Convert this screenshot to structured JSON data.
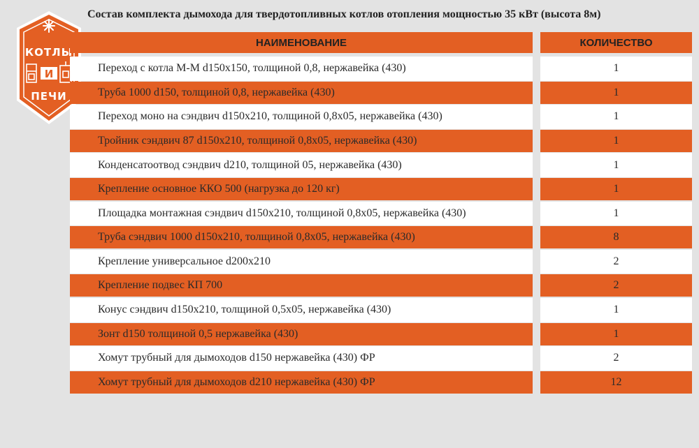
{
  "title": "Состав комплекта дымохода для твердотопливных котлов отопления мощностью 35 кВт (высота 8м)",
  "logo": {
    "line1": "КОТЛЫ",
    "line2": "И",
    "line3": "ПЕЧИ",
    "brand_color": "#e35f23"
  },
  "table": {
    "headers": {
      "name": "НАИМЕНОВАНИЕ",
      "qty": "КОЛИЧЕСТВО"
    },
    "rows": [
      {
        "name": "Переход с котла М-М d150х150, толщиной 0,8, нержавейка (430)",
        "qty": "1"
      },
      {
        "name": "Труба 1000 d150, толщиной 0,8, нержавейка (430)",
        "qty": "1"
      },
      {
        "name": "Переход моно на сэндвич d150х210, толщиной 0,8х05, нержавейка (430)",
        "qty": "1"
      },
      {
        "name": "Тройник сэндвич 87 d150х210, толщиной 0,8х05, нержавейка (430)",
        "qty": "1"
      },
      {
        "name": "Конденсатоотвод сэндвич d210, толщиной 05, нержавейка (430)",
        "qty": "1"
      },
      {
        "name": "Крепление основное ККО 500 (нагрузка до 120 кг)",
        "qty": "1"
      },
      {
        "name": "Площадка монтажная сэндвич d150х210, толщиной 0,8х05, нержавейка (430)",
        "qty": "1"
      },
      {
        "name": "Труба сэндвич 1000 d150х210, толщиной 0,8х05, нержавейка (430)",
        "qty": "8"
      },
      {
        "name": "Крепление универсальное d200х210",
        "qty": "2"
      },
      {
        "name": "Крепление подвес КП 700",
        "qty": "2"
      },
      {
        "name": "Конус сэндвич d150х210, толщиной 0,5х05, нержавейка (430)",
        "qty": "1"
      },
      {
        "name": "Зонт d150 толщиной 0,5 нержавейка (430)",
        "qty": "1"
      },
      {
        "name": "Хомут трубный для дымоходов d150 нержавейка (430) ФР",
        "qty": "2"
      },
      {
        "name": "Хомут трубный для дымоходов d210 нержавейка (430) ФР",
        "qty": "12"
      }
    ]
  }
}
